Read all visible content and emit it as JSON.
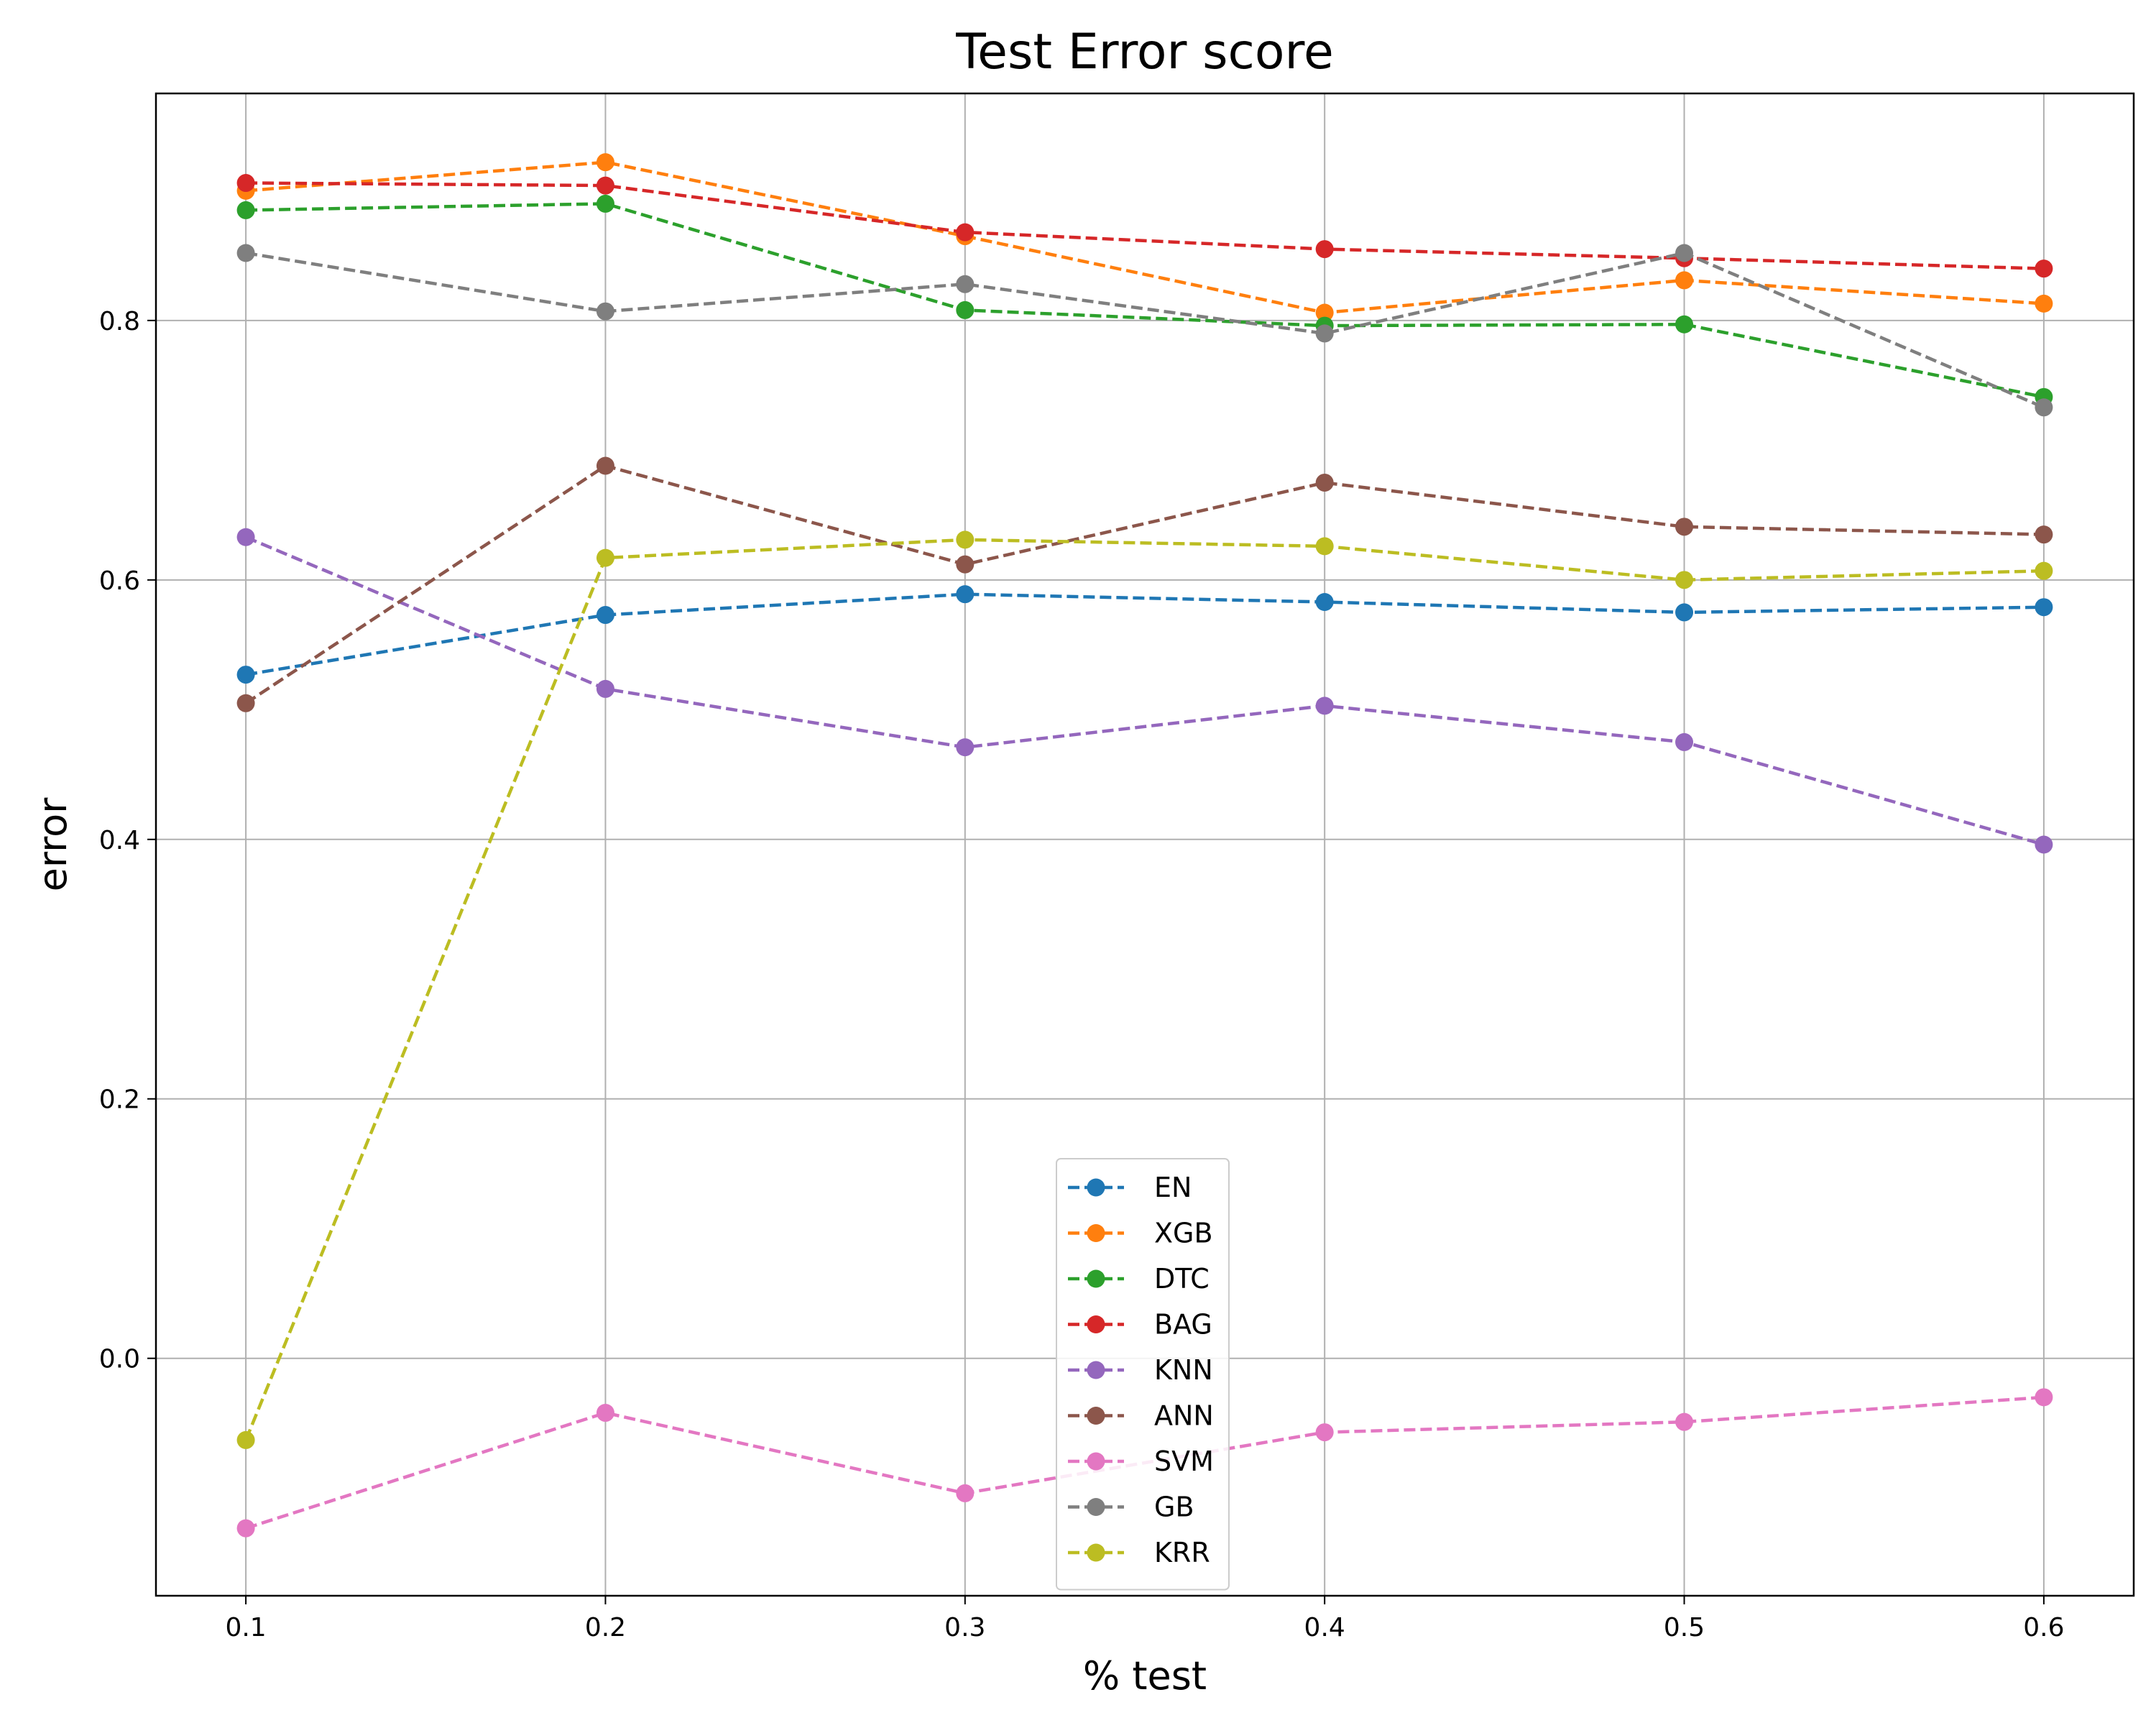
{
  "chart_data": {
    "type": "line",
    "title": "Test Error score",
    "xlabel": "% test",
    "ylabel": "error",
    "x": [
      0.1,
      0.2,
      0.3,
      0.4,
      0.5,
      0.6
    ],
    "x_tick_labels": [
      "0.1",
      "0.2",
      "0.3",
      "0.4",
      "0.5",
      "0.6"
    ],
    "y_ticks": [
      0.0,
      0.2,
      0.4,
      0.6,
      0.8
    ],
    "y_tick_labels": [
      "0.0",
      "0.2",
      "0.4",
      "0.6",
      "0.8"
    ],
    "xlim": [
      0.075,
      0.625
    ],
    "ylim": [
      -0.183,
      0.975
    ],
    "grid": true,
    "legend_position": "lower-center",
    "line_style": "dashed",
    "marker": "circle",
    "series": [
      {
        "name": "EN",
        "color": "#1f77b4",
        "values": [
          0.527,
          0.573,
          0.589,
          0.583,
          0.575,
          0.579
        ]
      },
      {
        "name": "XGB",
        "color": "#ff7f0e",
        "values": [
          0.9,
          0.922,
          0.865,
          0.806,
          0.831,
          0.813
        ]
      },
      {
        "name": "DTC",
        "color": "#2ca02c",
        "values": [
          0.885,
          0.89,
          0.808,
          0.796,
          0.797,
          0.741
        ]
      },
      {
        "name": "BAG",
        "color": "#d62728",
        "values": [
          0.906,
          0.904,
          0.868,
          0.855,
          0.848,
          0.84
        ]
      },
      {
        "name": "KNN",
        "color": "#9467bd",
        "values": [
          0.633,
          0.516,
          0.471,
          0.503,
          0.475,
          0.396
        ]
      },
      {
        "name": "ANN",
        "color": "#8c564b",
        "values": [
          0.505,
          0.688,
          0.612,
          0.675,
          0.641,
          0.635
        ]
      },
      {
        "name": "SVM",
        "color": "#e377c2",
        "values": [
          -0.131,
          -0.042,
          -0.104,
          -0.057,
          -0.049,
          -0.03
        ]
      },
      {
        "name": "GB",
        "color": "#7f7f7f",
        "values": [
          0.852,
          0.807,
          0.828,
          0.79,
          0.852,
          0.733
        ]
      },
      {
        "name": "KRR",
        "color": "#bcbd22",
        "values": [
          -0.063,
          0.617,
          0.631,
          0.626,
          0.6,
          0.607
        ]
      }
    ]
  }
}
